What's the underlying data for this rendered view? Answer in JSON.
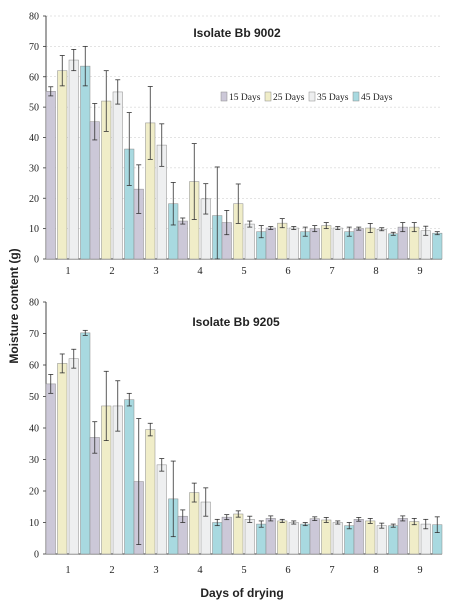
{
  "figure": {
    "ylabel": "Moisture content (g)",
    "xlabel": "Days of drying"
  },
  "chart_data": [
    {
      "type": "bar",
      "title": "Isolate Bb 9002",
      "categories": [
        "1",
        "2",
        "3",
        "4",
        "5",
        "6",
        "7",
        "8",
        "9"
      ],
      "ylim": [
        0,
        80
      ],
      "yticks": [
        0,
        10,
        20,
        30,
        40,
        50,
        60,
        70,
        80
      ],
      "grid": true,
      "legend_position": "right",
      "series": [
        {
          "name": "15 Days",
          "values": [
            55.2,
            45.2,
            23,
            12.5,
            12,
            10.2,
            10,
            10,
            10.5
          ],
          "errors": [
            1.5,
            6,
            8,
            1,
            4,
            0.5,
            1,
            0.5,
            1.5
          ]
        },
        {
          "name": "25 Days",
          "values": [
            62,
            52,
            44.8,
            25.5,
            18.2,
            11.8,
            11,
            10.2,
            10.5
          ],
          "errors": [
            5,
            10,
            12,
            12.5,
            6.5,
            1.5,
            1,
            1.5,
            1.5
          ]
        },
        {
          "name": "35 Days",
          "values": [
            65.5,
            55,
            37.5,
            19.8,
            11.5,
            10.2,
            10.2,
            9.8,
            9.3
          ],
          "errors": [
            3.5,
            4,
            7,
            5,
            1,
            0.5,
            0.5,
            0.5,
            1.5
          ]
        },
        {
          "name": "45 Days",
          "values": [
            63.5,
            36.2,
            18.2,
            14.3,
            9,
            9,
            9,
            8.3,
            8.5
          ],
          "errors": [
            6.5,
            12,
            7,
            16,
            2,
            1.5,
            1.5,
            0.5,
            0.5
          ]
        }
      ],
      "colors": [
        "#ccc8d8",
        "#f0edc8",
        "#eeeff0",
        "#a8d9e0"
      ]
    },
    {
      "type": "bar",
      "title": "Isolate Bb 9205",
      "categories": [
        "1",
        "2",
        "3",
        "4",
        "5",
        "6",
        "7",
        "8",
        "9"
      ],
      "ylim": [
        0,
        80
      ],
      "yticks": [
        0,
        10,
        20,
        30,
        40,
        50,
        60,
        70,
        80
      ],
      "grid": false,
      "series": [
        {
          "name": "15 Days",
          "values": [
            54,
            37,
            23,
            12,
            11.7,
            11.3,
            11.2,
            11,
            11.3
          ],
          "errors": [
            3,
            5,
            20,
            2,
            0.8,
            0.8,
            0.6,
            0.6,
            0.8
          ]
        },
        {
          "name": "25 Days",
          "values": [
            60.5,
            47,
            39.5,
            19.5,
            12.7,
            10.5,
            10.8,
            10.5,
            10.3
          ],
          "errors": [
            3,
            11,
            2,
            3,
            1,
            0.5,
            0.8,
            0.8,
            1
          ]
        },
        {
          "name": "35 Days",
          "values": [
            62,
            47,
            28.3,
            16.5,
            11,
            10,
            10,
            9,
            9.5
          ],
          "errors": [
            3,
            8,
            2,
            4.5,
            1,
            0.5,
            0.5,
            0.8,
            1.5
          ]
        },
        {
          "name": "45 Days",
          "values": [
            70.2,
            49,
            17.5,
            10,
            9.5,
            9.5,
            9,
            9,
            9.3
          ],
          "errors": [
            0.8,
            2,
            12,
            1,
            1,
            0.5,
            1,
            0.5,
            2.5
          ]
        }
      ],
      "colors": [
        "#ccc8d8",
        "#f0edc8",
        "#eeeff0",
        "#a8d9e0"
      ]
    }
  ]
}
